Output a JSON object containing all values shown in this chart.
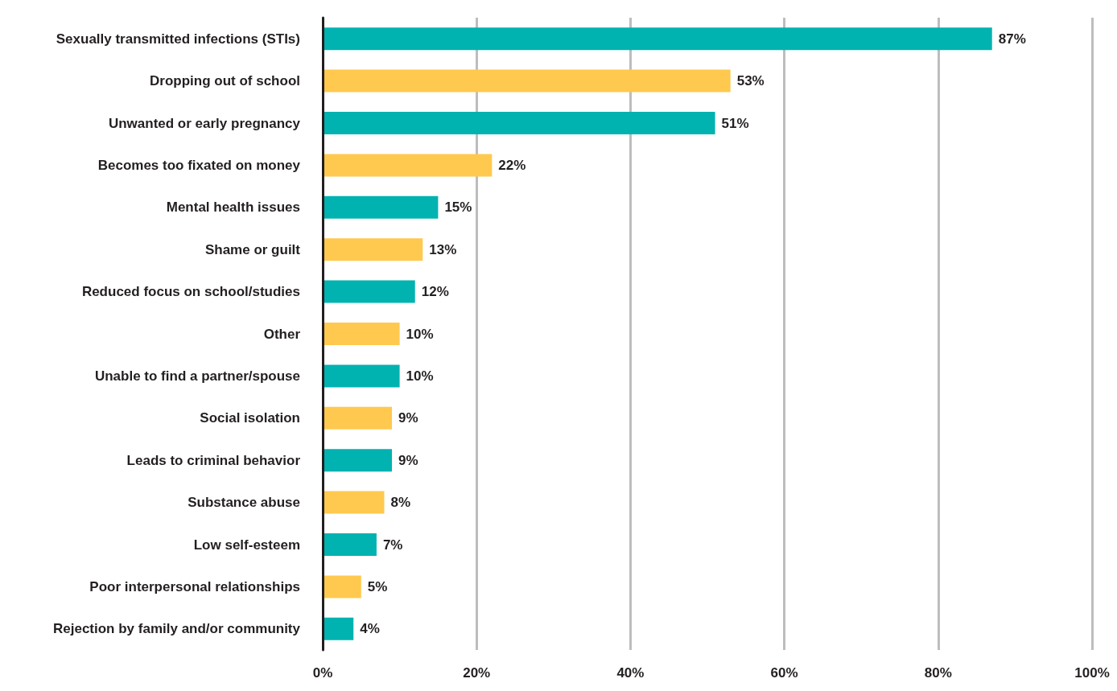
{
  "chart_data": {
    "type": "bar",
    "orientation": "horizontal",
    "categories": [
      "Sexually transmitted infections (STIs)",
      "Dropping out of school",
      "Unwanted or early pregnancy",
      "Becomes too fixated on money",
      "Mental health issues",
      "Shame or guilt",
      "Reduced focus on school/studies",
      "Other",
      "Unable to find a partner/spouse",
      "Social isolation",
      "Leads to criminal behavior",
      "Substance abuse",
      "Low self-esteem",
      "Poor interpersonal relationships",
      "Rejection by family and/or community"
    ],
    "values": [
      87,
      53,
      51,
      22,
      15,
      13,
      12,
      10,
      10,
      9,
      9,
      8,
      7,
      5,
      4
    ],
    "colors": [
      "#00b2b0",
      "#ffc94f",
      "#00b2b0",
      "#ffc94f",
      "#00b2b0",
      "#ffc94f",
      "#00b2b0",
      "#ffc94f",
      "#00b2b0",
      "#ffc94f",
      "#00b2b0",
      "#ffc94f",
      "#00b2b0",
      "#ffc94f",
      "#00b2b0"
    ],
    "value_labels": [
      "87%",
      "53%",
      "51%",
      "22%",
      "15%",
      "13%",
      "12%",
      "10%",
      "10%",
      "9%",
      "9%",
      "8%",
      "7%",
      "5%",
      "4%"
    ],
    "xlim": [
      0,
      100
    ],
    "xticks": [
      {
        "value": 0,
        "label": "0%"
      },
      {
        "value": 20,
        "label": "20%"
      },
      {
        "value": 40,
        "label": "40%"
      },
      {
        "value": 60,
        "label": "60%"
      },
      {
        "value": 80,
        "label": "80%"
      },
      {
        "value": 100,
        "label": "100%"
      }
    ],
    "grid": "x"
  }
}
